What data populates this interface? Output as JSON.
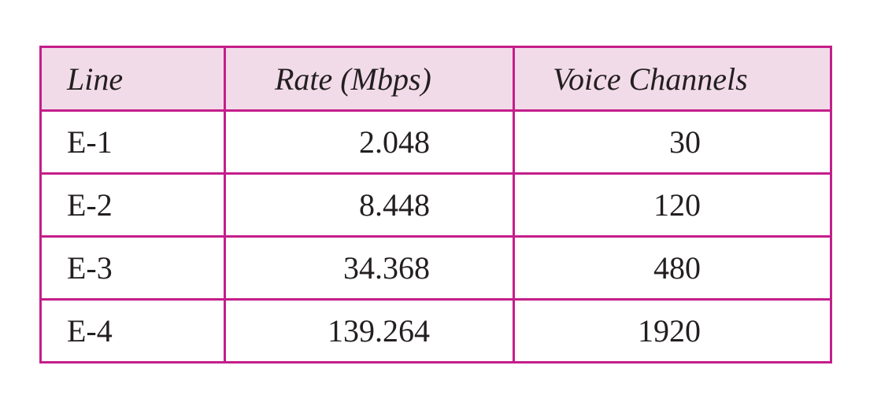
{
  "table": {
    "headers": {
      "line": "Line",
      "rate": "Rate (Mbps)",
      "voice": "Voice Channels"
    },
    "rows": [
      {
        "line": "E-1",
        "rate": "2.048",
        "voice": "30"
      },
      {
        "line": "E-2",
        "rate": "8.448",
        "voice": "120"
      },
      {
        "line": "E-3",
        "rate": "34.368",
        "voice": "480"
      },
      {
        "line": "E-4",
        "rate": "139.264",
        "voice": "1920"
      }
    ]
  },
  "colors": {
    "border": "#c41e8a",
    "header_background": "#f2dbe9",
    "text": "#231f20"
  }
}
